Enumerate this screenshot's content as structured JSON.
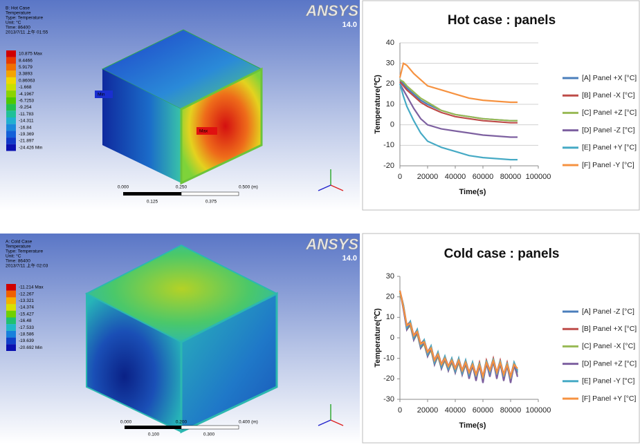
{
  "chart_data": [
    {
      "type": "line",
      "title": "Hot case : panels",
      "y_label": "Temperature(℃)",
      "x_label": "Time(s)",
      "x": [
        0,
        2500,
        5000,
        10000,
        15000,
        20000,
        30000,
        40000,
        50000,
        60000,
        70000,
        80000,
        85000
      ],
      "xlim": [
        0,
        100000
      ],
      "xticks": [
        0,
        20000,
        40000,
        60000,
        80000,
        100000
      ],
      "ylim": [
        -20,
        40
      ],
      "yticks": [
        -20,
        -10,
        0,
        10,
        20,
        30,
        40
      ],
      "grid": true,
      "series": [
        {
          "name": "[A] Panel +X [°C]",
          "color": "#4a7ebb",
          "values": [
            22,
            20,
            18,
            15,
            12,
            10,
            7,
            5,
            4,
            3,
            2.5,
            2,
            2
          ]
        },
        {
          "name": "[B] Panel -X [°C]",
          "color": "#be4b48",
          "values": [
            21,
            19,
            17,
            14,
            11,
            9,
            6,
            4,
            3,
            2,
            1.5,
            1,
            1
          ]
        },
        {
          "name": "[C] Panel +Z [°C]",
          "color": "#98b954",
          "values": [
            22,
            21,
            19,
            16,
            13,
            11,
            7,
            5,
            4,
            3,
            2.5,
            2,
            2
          ]
        },
        {
          "name": "[D] Panel -Z [°C]",
          "color": "#7d60a0",
          "values": [
            20,
            17,
            14,
            8,
            3,
            0,
            -2,
            -3,
            -4,
            -5,
            -5.5,
            -6,
            -6
          ]
        },
        {
          "name": "[E] Panel +Y [°C]",
          "color": "#46aac5",
          "values": [
            20,
            14,
            9,
            2,
            -4,
            -8,
            -11,
            -13,
            -15,
            -16,
            -16.5,
            -17,
            -17
          ]
        },
        {
          "name": "[F] Panel -Y [°C]",
          "color": "#f69240",
          "values": [
            23,
            30,
            29,
            25,
            22,
            19,
            17,
            15,
            13,
            12,
            11.5,
            11,
            11
          ]
        }
      ]
    },
    {
      "type": "line",
      "title": "Cold case : panels",
      "y_label": "Temperature(℃)",
      "x_label": "Time(s)",
      "x": [
        0,
        2500,
        5000,
        7500,
        10000,
        12500,
        15000,
        17500,
        20000,
        22500,
        25000,
        27500,
        30000,
        32500,
        35000,
        37500,
        40000,
        42500,
        45000,
        47500,
        50000,
        52500,
        55000,
        57500,
        60000,
        62500,
        65000,
        67500,
        70000,
        72500,
        75000,
        77500,
        80000,
        82500,
        85000
      ],
      "xlim": [
        0,
        100000
      ],
      "xticks": [
        0,
        20000,
        40000,
        60000,
        80000,
        100000
      ],
      "ylim": [
        -30,
        30
      ],
      "yticks": [
        -30,
        -20,
        -10,
        0,
        10,
        20,
        30
      ],
      "grid": false,
      "series": [
        {
          "name": "[A] Panel -Z [°C]",
          "color": "#4a7ebb",
          "values": [
            23,
            15,
            5,
            7,
            0,
            3,
            -4,
            -2,
            -8,
            -5,
            -12,
            -8,
            -14,
            -10,
            -15,
            -11,
            -16,
            -11,
            -17,
            -12,
            -18,
            -13,
            -19,
            -13,
            -20,
            -12,
            -17,
            -11,
            -18,
            -12,
            -19,
            -13,
            -20,
            -13,
            -17
          ]
        },
        {
          "name": "[B] Panel +X [°C]",
          "color": "#be4b48",
          "values": [
            23,
            16,
            6,
            8,
            1,
            4,
            -3,
            -1,
            -7,
            -4,
            -11,
            -7,
            -13,
            -9,
            -14,
            -10,
            -15,
            -10,
            -16,
            -11,
            -17,
            -12,
            -18,
            -12,
            -19,
            -11,
            -16,
            -10,
            -17,
            -11,
            -18,
            -12,
            -19,
            -12,
            -16
          ]
        },
        {
          "name": "[C] Panel -X [°C]",
          "color": "#98b954",
          "values": [
            22,
            15,
            4,
            6,
            -1,
            2,
            -5,
            -3,
            -9,
            -6,
            -13,
            -9,
            -15,
            -11,
            -16,
            -12,
            -17,
            -12,
            -18,
            -13,
            -19,
            -14,
            -20,
            -14,
            -21,
            -13,
            -18,
            -12,
            -19,
            -13,
            -20,
            -14,
            -21,
            -14,
            -18
          ]
        },
        {
          "name": "[D] Panel +Z [°C]",
          "color": "#7d60a0",
          "values": [
            23,
            14,
            4,
            7,
            -1,
            3,
            -5,
            -2,
            -9,
            -5,
            -13,
            -8,
            -15,
            -10,
            -16,
            -11,
            -17,
            -11,
            -18,
            -12,
            -20,
            -13,
            -21,
            -13,
            -22,
            -12,
            -19,
            -11,
            -20,
            -12,
            -21,
            -13,
            -22,
            -13,
            -19
          ]
        },
        {
          "name": "[E] Panel -Y [°C]",
          "color": "#46aac5",
          "values": [
            22,
            16,
            5,
            8,
            0,
            4,
            -4,
            -1,
            -8,
            -4,
            -12,
            -7,
            -14,
            -9,
            -15,
            -10,
            -16,
            -10,
            -17,
            -11,
            -18,
            -12,
            -19,
            -12,
            -20,
            -11,
            -17,
            -10,
            -18,
            -11,
            -19,
            -12,
            -20,
            -12,
            -16
          ]
        },
        {
          "name": "[F] Panel +Y [°C]",
          "color": "#f69240",
          "values": [
            23,
            15,
            6,
            7,
            1,
            3,
            -3,
            -2,
            -7,
            -5,
            -11,
            -8,
            -13,
            -10,
            -14,
            -11,
            -15,
            -11,
            -16,
            -12,
            -17,
            -13,
            -18,
            -13,
            -19,
            -12,
            -16,
            -11,
            -17,
            -12,
            -18,
            -13,
            -19,
            -13,
            -15
          ]
        }
      ]
    }
  ],
  "simulations": [
    {
      "header": [
        "B: Hot Case",
        "Temperature",
        "Type: Temperature",
        "Unit: °C",
        "Time: 86400",
        "2013/7/11 上午 01:55"
      ],
      "legend": [
        "10.875 Max",
        "8.4466",
        "5.9179",
        "3.3893",
        "0.86063",
        "-1.668",
        "-4.1967",
        "-6.7253",
        "-9.254",
        "-11.783",
        "-14.311",
        "-16.84",
        "-19.369",
        "-21.897",
        "-24.426 Min"
      ],
      "min_label": "Min",
      "max_label": "Max",
      "scale_top": [
        "0.000",
        "0.250",
        "0.500 (m)"
      ],
      "scale_bottom": [
        "0.125",
        "0.375"
      ],
      "logo": "ANSYS",
      "version": "14.0"
    },
    {
      "header": [
        "A: Cold Case",
        "Temperature",
        "Type: Temperature",
        "Unit: °C",
        "Time: 86400",
        "2013/7/11 上午 02:03"
      ],
      "legend": [
        "-11.214 Max",
        "-12.267",
        "-13.321",
        "-14.374",
        "-15.427",
        "-16.48",
        "-17.533",
        "-18.586",
        "-19.639",
        "-20.692 Min"
      ],
      "scale_top": [
        "0.000",
        "0.200",
        "0.400 (m)"
      ],
      "scale_bottom": [
        "0.100",
        "0.300"
      ],
      "logo": "ANSYS",
      "version": "14.0"
    }
  ]
}
